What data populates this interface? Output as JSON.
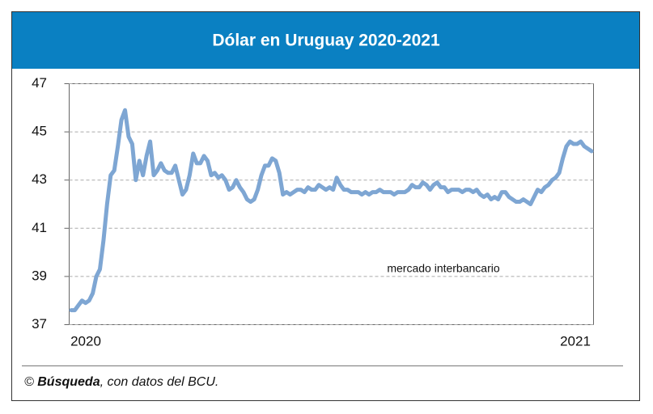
{
  "chart_data": {
    "type": "line",
    "title": "Dólar en Uruguay 2020-2021",
    "annotation": "mercado interbancario",
    "source": {
      "prefix": "©",
      "bold": "Búsqueda",
      "rest": ", con datos del BCU."
    },
    "categories": [
      "2020",
      null,
      null,
      null,
      null,
      null,
      null,
      null,
      null,
      null,
      null,
      null,
      null,
      null,
      null,
      null,
      null,
      null,
      null,
      null,
      null,
      null,
      null,
      null,
      null,
      null,
      null,
      null,
      null,
      null,
      null,
      null,
      null,
      null,
      null,
      null,
      null,
      null,
      null,
      null,
      null,
      null,
      null,
      null,
      null,
      null,
      null,
      null,
      null,
      null,
      null,
      null,
      null,
      null,
      null,
      null,
      null,
      null,
      null,
      null,
      null,
      null,
      null,
      null,
      null,
      null,
      null,
      null,
      null,
      null,
      null,
      null,
      null,
      null,
      null,
      null,
      null,
      null,
      null,
      null,
      null,
      null,
      null,
      null,
      null,
      null,
      null,
      null,
      null,
      null,
      null,
      null,
      null,
      null,
      null,
      null,
      null,
      null,
      null,
      null,
      null,
      null,
      null,
      null,
      null,
      null,
      null,
      null,
      null,
      null,
      null,
      null,
      null,
      null,
      null,
      null,
      null,
      null,
      null,
      null,
      null,
      null,
      null,
      null,
      null,
      null,
      null,
      null,
      null,
      null,
      null,
      null,
      null,
      null,
      null,
      null,
      null,
      null,
      null,
      null,
      null,
      null,
      null,
      null,
      null,
      "2021"
    ],
    "series": [
      {
        "name": "mercado interbancario",
        "color": "#7ea6d3",
        "values": [
          37.6,
          37.6,
          37.8,
          38.0,
          37.9,
          38.0,
          38.3,
          39.0,
          39.3,
          40.5,
          42.0,
          43.2,
          43.4,
          44.4,
          45.5,
          45.9,
          44.8,
          44.5,
          43.0,
          43.8,
          43.2,
          44.0,
          44.6,
          43.2,
          43.4,
          43.7,
          43.4,
          43.3,
          43.3,
          43.6,
          43.0,
          42.4,
          42.6,
          43.2,
          44.1,
          43.7,
          43.7,
          44.0,
          43.8,
          43.2,
          43.3,
          43.1,
          43.2,
          43.0,
          42.6,
          42.7,
          43.0,
          42.7,
          42.5,
          42.2,
          42.1,
          42.2,
          42.6,
          43.2,
          43.6,
          43.6,
          43.9,
          43.8,
          43.3,
          42.4,
          42.5,
          42.4,
          42.5,
          42.6,
          42.6,
          42.5,
          42.7,
          42.6,
          42.6,
          42.8,
          42.7,
          42.6,
          42.7,
          42.6,
          43.1,
          42.8,
          42.6,
          42.6,
          42.5,
          42.5,
          42.5,
          42.4,
          42.5,
          42.4,
          42.5,
          42.5,
          42.6,
          42.5,
          42.5,
          42.5,
          42.4,
          42.5,
          42.5,
          42.5,
          42.6,
          42.8,
          42.7,
          42.7,
          42.9,
          42.8,
          42.6,
          42.8,
          42.9,
          42.7,
          42.7,
          42.5,
          42.6,
          42.6,
          42.6,
          42.5,
          42.6,
          42.6,
          42.5,
          42.6,
          42.4,
          42.3,
          42.4,
          42.2,
          42.3,
          42.2,
          42.5,
          42.5,
          42.3,
          42.2,
          42.1,
          42.1,
          42.2,
          42.1,
          42.0,
          42.3,
          42.6,
          42.5,
          42.7,
          42.8,
          43.0,
          43.1,
          43.3,
          43.9,
          44.4,
          44.6,
          44.5,
          44.5,
          44.6,
          44.4,
          44.3,
          44.2
        ]
      }
    ],
    "ylim": [
      37,
      47
    ],
    "yticks": [
      37,
      39,
      41,
      43,
      45,
      47
    ],
    "grid": true
  }
}
